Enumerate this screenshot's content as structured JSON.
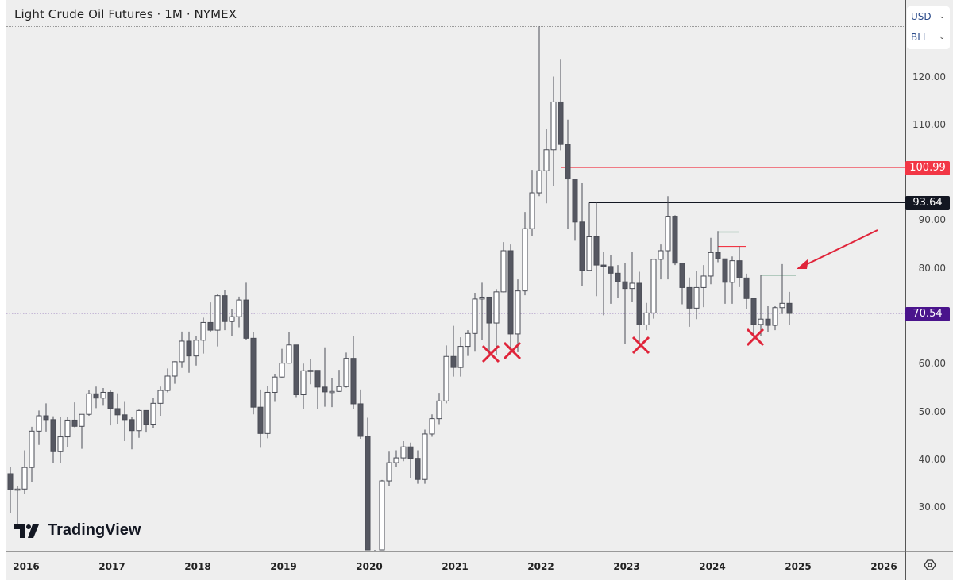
{
  "header": {
    "title": "Light Crude Oil Futures · 1M · NYMEX"
  },
  "units": {
    "currency": "USD",
    "unit": "BLL"
  },
  "branding": {
    "logo_text": "TradingView"
  },
  "colors": {
    "background": "#eeeeee",
    "up_candle_fill": "#ffffff",
    "down_candle_fill": "#555761",
    "candle_border": "#4a4c55",
    "red_level": "#f23645",
    "black_level": "#131722",
    "current_price": "#4a148c",
    "marker_red": "#e0243a",
    "green_level": "#4c8c6c"
  },
  "price_axis": {
    "ticks": [
      "120.00",
      "110.00",
      "100.00",
      "90.00",
      "80.00",
      "70.00",
      "60.00",
      "50.00",
      "40.00",
      "30.00"
    ]
  },
  "time_axis": {
    "ticks": [
      "2016",
      "2017",
      "2018",
      "2019",
      "2020",
      "2021",
      "2022",
      "2023",
      "2024",
      "2025",
      "2026"
    ]
  },
  "price_labels": {
    "red_level": "100.99",
    "black_level": "93.64",
    "current": "70.54"
  },
  "chart_data": {
    "type": "candlestick",
    "title": "Light Crude Oil Futures · 1M · NYMEX",
    "xlabel": "",
    "ylabel": "USD / BLL",
    "ylim": [
      20,
      130
    ],
    "grid": false,
    "interval": "1M",
    "start": "2016-01",
    "current_price": 70.54,
    "horizontal_levels": [
      {
        "price": 100.99,
        "color": "#f23645",
        "from": "2022-06"
      },
      {
        "price": 93.64,
        "color": "#131722",
        "from": "2022-10"
      },
      {
        "price": 70.54,
        "color": "#4a148c",
        "style": "dotted",
        "label": "current"
      }
    ],
    "short_levels": [
      {
        "price": 87.5,
        "color": "#4c8c6c",
        "from": "2024-04",
        "to": "2024-06"
      },
      {
        "price": 84.5,
        "color": "#f23645",
        "from": "2024-04",
        "to": "2024-07"
      },
      {
        "price": 78.5,
        "color": "#4c8c6c",
        "from": "2024-10",
        "to": "2025-02"
      }
    ],
    "x_markers": [
      "2021-08",
      "2021-11",
      "2023-05",
      "2024-09"
    ],
    "annotations": [
      {
        "type": "arrow",
        "color": "#e0243a",
        "points_to": "2025-01 high ~80.8"
      }
    ],
    "ohlc": [
      [
        37.0,
        38.4,
        28.8,
        33.6
      ],
      [
        33.6,
        34.4,
        26.1,
        33.8
      ],
      [
        33.8,
        41.9,
        32.7,
        38.3
      ],
      [
        38.3,
        46.8,
        35.2,
        45.9
      ],
      [
        45.9,
        50.2,
        43.0,
        49.1
      ],
      [
        49.1,
        51.7,
        45.8,
        48.3
      ],
      [
        48.3,
        49.0,
        39.2,
        41.6
      ],
      [
        41.6,
        48.8,
        39.2,
        44.7
      ],
      [
        44.7,
        48.8,
        42.5,
        48.2
      ],
      [
        48.2,
        51.9,
        46.7,
        46.9
      ],
      [
        46.9,
        49.2,
        42.2,
        49.4
      ],
      [
        49.4,
        54.5,
        49.1,
        53.7
      ],
      [
        53.7,
        55.2,
        50.7,
        52.8
      ],
      [
        52.8,
        54.9,
        51.2,
        54.0
      ],
      [
        54.0,
        54.4,
        47.1,
        50.6
      ],
      [
        50.6,
        53.8,
        47.3,
        49.3
      ],
      [
        49.3,
        52.0,
        43.8,
        48.3
      ],
      [
        48.3,
        48.9,
        42.1,
        46.0
      ],
      [
        46.0,
        50.4,
        44.5,
        50.2
      ],
      [
        50.2,
        50.2,
        45.6,
        47.2
      ],
      [
        47.2,
        52.9,
        46.5,
        51.7
      ],
      [
        51.7,
        55.2,
        49.1,
        54.4
      ],
      [
        54.4,
        59.0,
        54.0,
        57.4
      ],
      [
        57.4,
        60.5,
        55.8,
        60.4
      ],
      [
        60.4,
        66.7,
        59.1,
        64.7
      ],
      [
        64.7,
        66.7,
        58.1,
        61.6
      ],
      [
        61.6,
        65.7,
        59.6,
        64.9
      ],
      [
        64.9,
        69.6,
        62.1,
        68.6
      ],
      [
        68.6,
        72.8,
        66.6,
        67.0
      ],
      [
        67.0,
        74.5,
        63.6,
        74.2
      ],
      [
        74.2,
        75.3,
        67.0,
        68.8
      ],
      [
        68.8,
        71.4,
        65.8,
        69.8
      ],
      [
        69.8,
        74.0,
        67.6,
        73.3
      ],
      [
        73.3,
        76.9,
        64.9,
        65.3
      ],
      [
        65.3,
        66.6,
        49.4,
        50.9
      ],
      [
        50.9,
        54.6,
        42.4,
        45.4
      ],
      [
        45.4,
        55.4,
        44.4,
        54.0
      ],
      [
        54.0,
        57.9,
        52.0,
        57.2
      ],
      [
        57.2,
        63.1,
        57.1,
        60.1
      ],
      [
        60.1,
        66.6,
        60.0,
        63.9
      ],
      [
        63.9,
        63.7,
        53.0,
        53.5
      ],
      [
        53.5,
        60.0,
        50.6,
        58.5
      ],
      [
        58.5,
        60.9,
        55.7,
        58.6
      ],
      [
        58.6,
        57.5,
        50.5,
        55.1
      ],
      [
        55.1,
        63.4,
        51.0,
        54.1
      ],
      [
        54.1,
        57.0,
        50.9,
        54.2
      ],
      [
        54.2,
        58.7,
        54.1,
        55.2
      ],
      [
        55.2,
        62.3,
        55.0,
        61.1
      ],
      [
        61.1,
        65.7,
        50.6,
        51.6
      ],
      [
        51.6,
        54.6,
        44.3,
        44.8
      ],
      [
        44.8,
        48.7,
        20.0,
        20.5
      ],
      [
        18.8,
        20.0,
        -37.6,
        18.8
      ],
      [
        18.8,
        35.7,
        12.0,
        35.5
      ],
      [
        35.5,
        41.6,
        34.4,
        39.3
      ],
      [
        39.3,
        41.9,
        38.5,
        40.3
      ],
      [
        40.3,
        43.8,
        39.6,
        42.6
      ],
      [
        42.6,
        43.5,
        36.1,
        40.2
      ],
      [
        40.2,
        41.9,
        34.9,
        35.8
      ],
      [
        35.8,
        46.2,
        34.9,
        45.3
      ],
      [
        45.3,
        49.4,
        44.7,
        48.5
      ],
      [
        48.5,
        53.9,
        47.2,
        52.2
      ],
      [
        52.2,
        63.8,
        51.7,
        61.5
      ],
      [
        61.5,
        67.9,
        57.3,
        59.2
      ],
      [
        59.2,
        65.5,
        57.3,
        63.6
      ],
      [
        63.6,
        67.0,
        61.6,
        66.3
      ],
      [
        66.3,
        74.8,
        62.5,
        73.5
      ],
      [
        73.5,
        76.9,
        65.0,
        73.9
      ],
      [
        73.9,
        73.6,
        61.7,
        68.5
      ],
      [
        68.5,
        75.6,
        61.7,
        75.0
      ],
      [
        75.0,
        85.4,
        74.9,
        83.6
      ],
      [
        83.6,
        84.9,
        62.4,
        66.2
      ],
      [
        66.2,
        77.6,
        62.4,
        75.2
      ],
      [
        75.2,
        91.7,
        74.3,
        88.2
      ],
      [
        88.2,
        100.5,
        86.6,
        95.7
      ],
      [
        95.7,
        130.5,
        95.0,
        100.3
      ],
      [
        100.3,
        109.0,
        93.5,
        104.7
      ],
      [
        104.7,
        120.0,
        97.2,
        114.7
      ],
      [
        114.7,
        123.7,
        104.6,
        105.8
      ],
      [
        105.8,
        111.0,
        88.2,
        98.6
      ],
      [
        98.6,
        97.7,
        85.7,
        89.6
      ],
      [
        89.6,
        97.7,
        76.3,
        79.5
      ],
      [
        79.5,
        93.6,
        79.3,
        86.5
      ],
      [
        86.5,
        93.7,
        74.1,
        80.6
      ],
      [
        80.6,
        83.3,
        70.1,
        80.3
      ],
      [
        80.3,
        82.7,
        72.5,
        78.9
      ],
      [
        78.9,
        80.6,
        73.8,
        77.1
      ],
      [
        77.1,
        81.0,
        64.1,
        75.7
      ],
      [
        75.7,
        83.4,
        72.9,
        76.8
      ],
      [
        76.8,
        79.2,
        63.6,
        68.1
      ],
      [
        68.1,
        72.7,
        67.0,
        70.6
      ],
      [
        70.6,
        81.8,
        69.4,
        81.8
      ],
      [
        81.8,
        84.9,
        77.6,
        83.6
      ],
      [
        83.6,
        95.0,
        77.6,
        90.8
      ],
      [
        90.8,
        91.0,
        80.6,
        81.0
      ],
      [
        81.0,
        80.5,
        72.4,
        75.9
      ],
      [
        75.9,
        78.0,
        67.7,
        71.6
      ],
      [
        71.6,
        79.3,
        69.3,
        75.9
      ],
      [
        75.9,
        80.6,
        71.8,
        78.3
      ],
      [
        78.3,
        86.3,
        76.6,
        83.2
      ],
      [
        83.2,
        87.7,
        81.2,
        81.9
      ],
      [
        81.9,
        80.6,
        72.5,
        77.0
      ],
      [
        77.0,
        82.4,
        72.5,
        81.5
      ],
      [
        81.5,
        84.5,
        76.0,
        77.9
      ],
      [
        77.9,
        78.8,
        71.5,
        73.6
      ],
      [
        73.6,
        71.6,
        65.3,
        68.2
      ],
      [
        68.2,
        78.5,
        65.7,
        69.3
      ],
      [
        69.3,
        72.0,
        66.6,
        68.0
      ],
      [
        68.0,
        72.0,
        67.0,
        71.7
      ],
      [
        71.7,
        80.8,
        70.4,
        72.6
      ],
      [
        72.6,
        75.0,
        68.1,
        70.5
      ]
    ]
  }
}
